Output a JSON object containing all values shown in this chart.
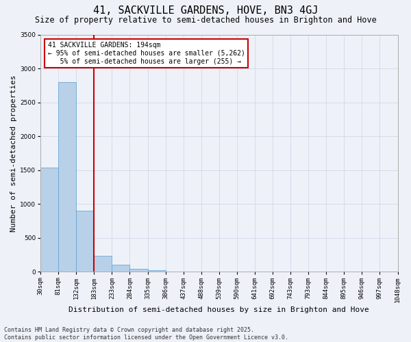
{
  "title": "41, SACKVILLE GARDENS, HOVE, BN3 4GJ",
  "subtitle": "Size of property relative to semi-detached houses in Brighton and Hove",
  "xlabel": "Distribution of semi-detached houses by size in Brighton and Hove",
  "ylabel": "Number of semi-detached properties",
  "bar_values": [
    1540,
    2800,
    900,
    240,
    100,
    40,
    20,
    5,
    2,
    1,
    0,
    0,
    0,
    0,
    0,
    0,
    0,
    0,
    0,
    0
  ],
  "tick_labels": [
    "30sqm",
    "81sqm",
    "132sqm",
    "183sqm",
    "233sqm",
    "284sqm",
    "335sqm",
    "386sqm",
    "437sqm",
    "488sqm",
    "539sqm",
    "590sqm",
    "641sqm",
    "692sqm",
    "743sqm",
    "793sqm",
    "844sqm",
    "895sqm",
    "946sqm",
    "997sqm",
    "1048sqm"
  ],
  "bar_color": "#b8d0e8",
  "bar_edge_color": "#5a9fd4",
  "grid_color": "#d0d8e8",
  "background_color": "#eef2f8",
  "vline_pos": 3,
  "vline_color": "#cc0000",
  "annotation_text": "41 SACKVILLE GARDENS: 194sqm\n← 95% of semi-detached houses are smaller (5,262)\n   5% of semi-detached houses are larger (255) →",
  "annotation_box_color": "#ffffff",
  "annotation_box_edge": "#cc0000",
  "ylim": [
    0,
    3500
  ],
  "yticks": [
    0,
    500,
    1000,
    1500,
    2000,
    2500,
    3000,
    3500
  ],
  "footer_text": "Contains HM Land Registry data © Crown copyright and database right 2025.\nContains public sector information licensed under the Open Government Licence v3.0.",
  "title_fontsize": 11,
  "subtitle_fontsize": 8.5,
  "axis_label_fontsize": 8,
  "tick_fontsize": 6.5,
  "annotation_fontsize": 7,
  "footer_fontsize": 6
}
